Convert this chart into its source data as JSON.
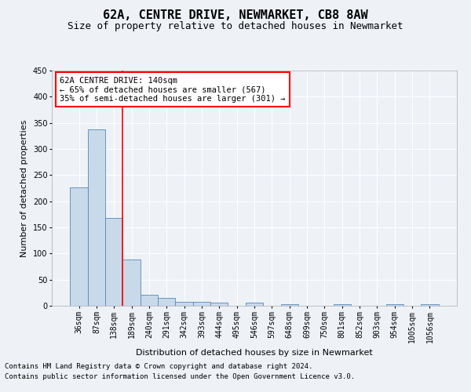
{
  "title": "62A, CENTRE DRIVE, NEWMARKET, CB8 8AW",
  "subtitle": "Size of property relative to detached houses in Newmarket",
  "xlabel": "Distribution of detached houses by size in Newmarket",
  "ylabel": "Number of detached properties",
  "categories": [
    "36sqm",
    "87sqm",
    "138sqm",
    "189sqm",
    "240sqm",
    "291sqm",
    "342sqm",
    "393sqm",
    "444sqm",
    "495sqm",
    "546sqm",
    "597sqm",
    "648sqm",
    "699sqm",
    "750sqm",
    "801sqm",
    "852sqm",
    "903sqm",
    "954sqm",
    "1005sqm",
    "1056sqm"
  ],
  "values": [
    226,
    337,
    168,
    89,
    21,
    15,
    7,
    7,
    6,
    0,
    6,
    0,
    3,
    0,
    0,
    3,
    0,
    0,
    3,
    0,
    3
  ],
  "bar_color": "#c8d9ea",
  "bar_edge_color": "#5588bb",
  "redline_index": 2,
  "annotation_line1": "62A CENTRE DRIVE: 140sqm",
  "annotation_line2": "← 65% of detached houses are smaller (567)",
  "annotation_line3": "35% of semi-detached houses are larger (301) →",
  "annotation_box_color": "white",
  "annotation_box_edge_color": "red",
  "ylim": [
    0,
    450
  ],
  "yticks": [
    0,
    50,
    100,
    150,
    200,
    250,
    300,
    350,
    400,
    450
  ],
  "footnote1": "Contains HM Land Registry data © Crown copyright and database right 2024.",
  "footnote2": "Contains public sector information licensed under the Open Government Licence v3.0.",
  "background_color": "#eef2f7",
  "grid_color": "#ffffff",
  "title_fontsize": 11,
  "subtitle_fontsize": 9,
  "axis_label_fontsize": 8,
  "tick_fontsize": 7,
  "annotation_fontsize": 7.5,
  "footnote_fontsize": 6.5
}
